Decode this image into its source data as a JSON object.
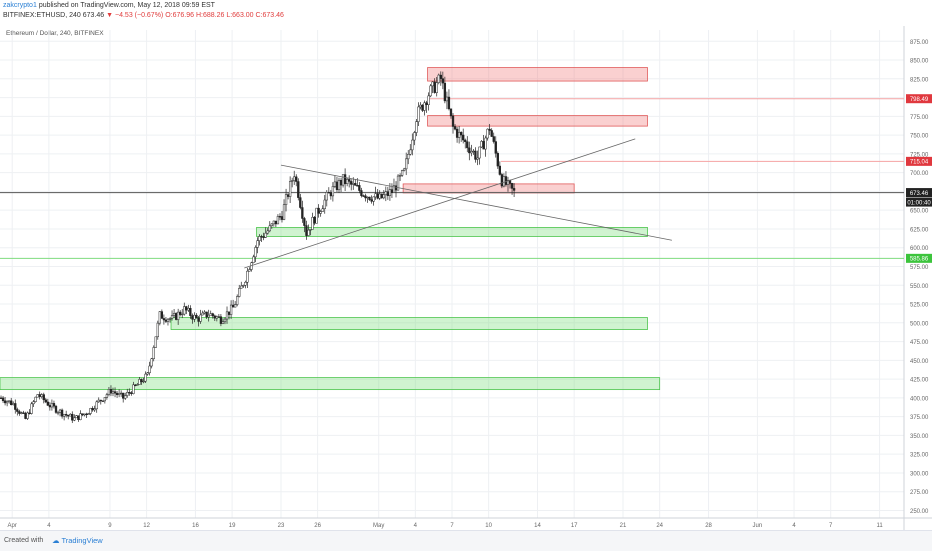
{
  "header": {
    "author": "zakcrypto1",
    "published": "published on TradingView.com, May 12, 2018 09:59 EST",
    "symbol": "BITFINEX:ETHUSD, 240",
    "price": "673.46",
    "change": "▼ −4.53 (−0.67%)",
    "ohlc": "O:676.96 H:688.26 L:663.00 C:673.46"
  },
  "footer": {
    "created": "Created with",
    "brand": "TradingView"
  },
  "chart_data": {
    "type": "candlestick",
    "title": "Ethereum / Dollar, 240, BITFINEX",
    "ylim": [
      240,
      890
    ],
    "y_ticks": [
      250,
      275,
      300,
      325,
      350,
      375,
      400,
      425,
      450,
      475,
      500,
      525,
      550,
      575,
      600,
      625,
      650,
      675,
      700,
      725,
      750,
      775,
      800,
      825,
      850,
      875
    ],
    "x_range": [
      "2018-03-31",
      "2018-06-13"
    ],
    "x_ticks": [
      {
        "date": "2018-04-01",
        "label": "Apr"
      },
      {
        "date": "2018-04-04",
        "label": "4"
      },
      {
        "date": "2018-04-09",
        "label": "9"
      },
      {
        "date": "2018-04-12",
        "label": "12"
      },
      {
        "date": "2018-04-16",
        "label": "16"
      },
      {
        "date": "2018-04-19",
        "label": "19"
      },
      {
        "date": "2018-04-23",
        "label": "23"
      },
      {
        "date": "2018-04-26",
        "label": "26"
      },
      {
        "date": "2018-05-01",
        "label": "May"
      },
      {
        "date": "2018-05-04",
        "label": "4"
      },
      {
        "date": "2018-05-07",
        "label": "7"
      },
      {
        "date": "2018-05-10",
        "label": "10"
      },
      {
        "date": "2018-05-14",
        "label": "14"
      },
      {
        "date": "2018-05-17",
        "label": "17"
      },
      {
        "date": "2018-05-21",
        "label": "21"
      },
      {
        "date": "2018-05-24",
        "label": "24"
      },
      {
        "date": "2018-05-28",
        "label": "28"
      },
      {
        "date": "2018-06-01",
        "label": "Jun"
      },
      {
        "date": "2018-06-04",
        "label": "4"
      },
      {
        "date": "2018-06-07",
        "label": "7"
      },
      {
        "date": "2018-06-11",
        "label": "11"
      }
    ],
    "price_path": [
      [
        "2018-03-31",
        400
      ],
      [
        "2018-04-01",
        392
      ],
      [
        "2018-04-02",
        372
      ],
      [
        "2018-04-03",
        405
      ],
      [
        "2018-04-04",
        390
      ],
      [
        "2018-04-05",
        380
      ],
      [
        "2018-04-06",
        372
      ],
      [
        "2018-04-07",
        380
      ],
      [
        "2018-04-08",
        395
      ],
      [
        "2018-04-09",
        410
      ],
      [
        "2018-04-10",
        400
      ],
      [
        "2018-04-11",
        415
      ],
      [
        "2018-04-12",
        430
      ],
      [
        "2018-04-13",
        510
      ],
      [
        "2018-04-14",
        505
      ],
      [
        "2018-04-15",
        518
      ],
      [
        "2018-04-16",
        505
      ],
      [
        "2018-04-17",
        512
      ],
      [
        "2018-04-18",
        505
      ],
      [
        "2018-04-19",
        520
      ],
      [
        "2018-04-20",
        560
      ],
      [
        "2018-04-21",
        610
      ],
      [
        "2018-04-22",
        625
      ],
      [
        "2018-04-23",
        645
      ],
      [
        "2018-04-24",
        700
      ],
      [
        "2018-04-25",
        620
      ],
      [
        "2018-04-26",
        650
      ],
      [
        "2018-04-27",
        675
      ],
      [
        "2018-04-28",
        690
      ],
      [
        "2018-04-29",
        680
      ],
      [
        "2018-04-30",
        670
      ],
      [
        "2018-05-01",
        665
      ],
      [
        "2018-05-02",
        675
      ],
      [
        "2018-05-03",
        700
      ],
      [
        "2018-05-04",
        775
      ],
      [
        "2018-05-05",
        805
      ],
      [
        "2018-05-06",
        825
      ],
      [
        "2018-05-07",
        760
      ],
      [
        "2018-05-08",
        740
      ],
      [
        "2018-05-09",
        720
      ],
      [
        "2018-05-10",
        760
      ],
      [
        "2018-05-11",
        690
      ],
      [
        "2018-05-12",
        673.46
      ]
    ],
    "last_price": {
      "label": "673.46",
      "countdown": "01:00:40"
    },
    "price_labels": [
      {
        "value": 798.49,
        "label": "798.49",
        "color": "#e0383e"
      },
      {
        "value": 715.04,
        "label": "715.04",
        "color": "#e0383e"
      },
      {
        "value": 585.86,
        "label": "585.86",
        "color": "#3cc43c"
      }
    ],
    "resistance_zones": [
      {
        "x0": "2018-05-05",
        "x1": "2018-05-23",
        "y0": 822,
        "y1": 840
      },
      {
        "x0": "2018-05-05",
        "x1": "2018-05-23",
        "y0": 762,
        "y1": 776
      },
      {
        "x0": "2018-05-03",
        "x1": "2018-05-17",
        "y0": 673,
        "y1": 685
      }
    ],
    "support_zones": [
      {
        "x0": "2018-04-21",
        "x1": "2018-05-23",
        "y0": 615,
        "y1": 627
      },
      {
        "x0": "2018-04-14",
        "x1": "2018-05-23",
        "y0": 491,
        "y1": 507
      },
      {
        "x0": "2018-03-31",
        "x1": "2018-05-24",
        "y0": 411,
        "y1": 427
      }
    ],
    "trendlines": [
      {
        "x0": "2018-04-23",
        "y0": 710,
        "x1": "2018-05-25",
        "y1": 610
      },
      {
        "x0": "2018-04-20",
        "y0": 573,
        "x1": "2018-05-22",
        "y1": 745
      }
    ],
    "hlines": [
      {
        "value": 798.49,
        "from": "2018-05-05",
        "color": "#f5a3a3"
      },
      {
        "value": 715.04,
        "from": "2018-05-11",
        "color": "#f5a3a3"
      },
      {
        "value": 585.86,
        "from": "2018-03-31",
        "color": "#7fdc7f"
      },
      {
        "value": 673.46,
        "from": "2018-03-31",
        "color": "#555555"
      }
    ]
  }
}
